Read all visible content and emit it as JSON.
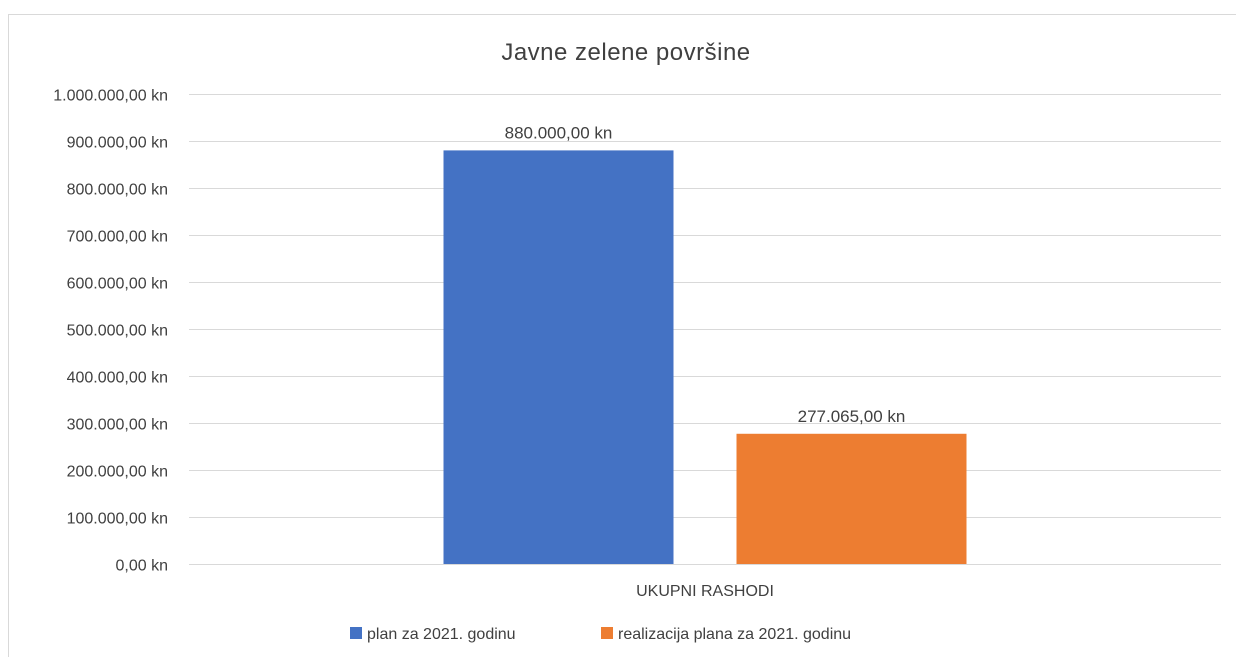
{
  "chart_data": {
    "type": "bar",
    "title": "Javne zelene površine",
    "categories": [
      "UKUPNI RASHODI"
    ],
    "series": [
      {
        "name": "plan za 2021. godinu",
        "values": [
          880000
        ],
        "value_labels": [
          "880.000,00 kn"
        ],
        "color": "#4472C4"
      },
      {
        "name": "realizacija plana za 2021. godinu",
        "values": [
          277065
        ],
        "value_labels": [
          "277.065,00 kn"
        ],
        "color": "#ED7D31"
      }
    ],
    "ylim": [
      0,
      1000000
    ],
    "y_ticks": [
      0,
      100000,
      200000,
      300000,
      400000,
      500000,
      600000,
      700000,
      800000,
      900000,
      1000000
    ],
    "y_tick_labels": [
      "0,00 kn",
      "100.000,00 kn",
      "200.000,00 kn",
      "300.000,00 kn",
      "400.000,00 kn",
      "500.000,00 kn",
      "600.000,00 kn",
      "700.000,00 kn",
      "800.000,00 kn",
      "900.000,00 kn",
      "1.000.000,00 kn"
    ],
    "grid": true,
    "legend_position": "bottom",
    "colors": {
      "gridline": "#d9d9d9",
      "axis_text": "#404040",
      "title_text": "#404040"
    }
  }
}
